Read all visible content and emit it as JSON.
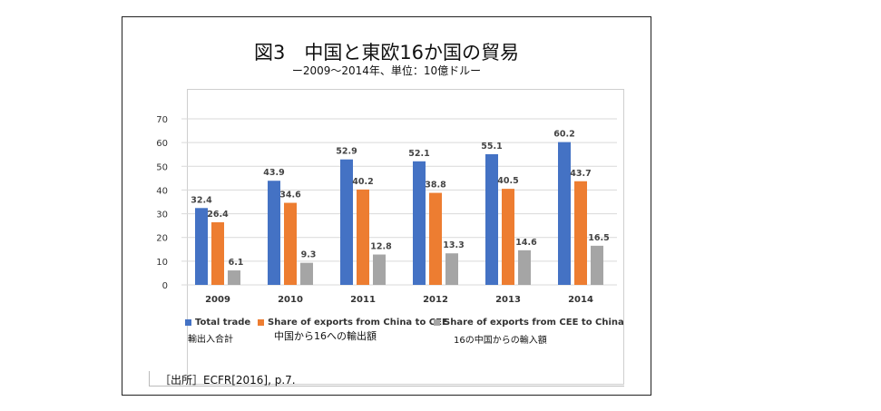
{
  "title": "図3　中国と東欧16か国の貿易",
  "subtitle": "ー2009〜2014年、単位：10億ドルー",
  "chart_data": {
    "type": "bar",
    "categories": [
      "2009",
      "2010",
      "2011",
      "2012",
      "2013",
      "2014"
    ],
    "series": [
      {
        "name": "Total trade",
        "color": "#4472C4",
        "values": [
          32.4,
          43.9,
          52.9,
          52.1,
          55.1,
          60.2
        ]
      },
      {
        "name": "Share of exports from China to CEE",
        "color": "#ED7D31",
        "values": [
          26.4,
          34.6,
          40.2,
          38.8,
          40.5,
          43.7
        ]
      },
      {
        "name": "Share of exports from CEE to China",
        "color": "#A5A5A5",
        "values": [
          6.1,
          9.3,
          12.8,
          13.3,
          14.6,
          16.5
        ]
      }
    ],
    "yticks": [
      0,
      10,
      20,
      30,
      40,
      50,
      60,
      70
    ],
    "ylim": [
      0,
      70
    ],
    "grid": true,
    "legend_position": "bottom"
  },
  "legend": {
    "total": "Total trade",
    "china_to_cee": "Share of exports from China to CEE",
    "cee_to_china": "Share of exports from CEE to China"
  },
  "notes": {
    "total": "輸出入合計",
    "china_to_cee": "中国から16への輸出額",
    "cee_to_china": "16の中国からの輸入額"
  },
  "source": "［出所］ECFR[2016], p.7."
}
